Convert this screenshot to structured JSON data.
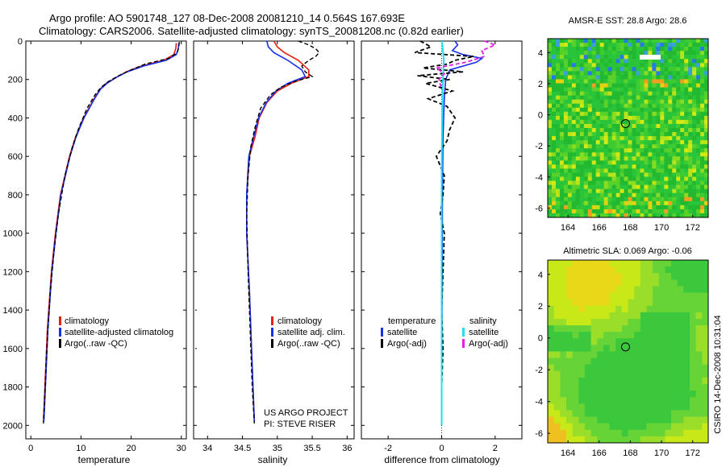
{
  "header": {
    "line1": "Argo profile: AO 5901748_127 08-Dec-2008 20081210_14 0.564S 167.693E",
    "line2": "Climatology: CARS2006. Satellite-adjusted climatology: synTS_20081208.nc (0.82d earlier)"
  },
  "credits": {
    "project": "US ARGO PROJECT",
    "pi": "PI: STEVE RISER"
  },
  "side_label": "CSIRO 14-Dec-2008 10:31:04",
  "colors": {
    "climatology": "#e82010",
    "satellite": "#1830e8",
    "argo": "#000000",
    "sat_salinity": "#20e0f0",
    "argo_salinity": "#e020e0",
    "map_green": "#22bb33",
    "map_yellow": "#c8e818",
    "map_orange": "#f0a020"
  },
  "chart_data": [
    {
      "type": "line",
      "name": "temperature-profile",
      "xlabel": "temperature",
      "ylabel": "",
      "xlim": [
        -1,
        31
      ],
      "ylim": [
        2070,
        0
      ],
      "y_reversed": true,
      "xticks": [
        0,
        10,
        20,
        30
      ],
      "yticks": [
        0,
        200,
        400,
        600,
        800,
        1000,
        1200,
        1400,
        1600,
        1800,
        2000
      ],
      "legend": [
        "climatology",
        "satellite-adjusted climatolog",
        "Argo(..raw -QC)"
      ],
      "series": [
        {
          "name": "climatology",
          "depth": [
            10,
            40,
            70,
            100,
            130,
            160,
            190,
            220,
            250,
            300,
            400,
            500,
            600,
            800,
            1000,
            1200,
            1500,
            1800,
            1980
          ],
          "values": [
            29.0,
            28.9,
            28.5,
            26.5,
            22.0,
            19.0,
            17.0,
            15.0,
            13.8,
            12.6,
            10.5,
            8.9,
            7.7,
            5.9,
            4.9,
            4.1,
            3.3,
            2.8,
            2.5
          ]
        },
        {
          "name": "satellite-adjusted climatolog",
          "depth": [
            10,
            40,
            70,
            100,
            130,
            160,
            190,
            220,
            250,
            300,
            400,
            500,
            600,
            800,
            1000,
            1200,
            1500,
            1800,
            1980
          ],
          "values": [
            29.5,
            29.4,
            29.0,
            27.0,
            22.5,
            19.2,
            17.0,
            15.2,
            13.9,
            12.7,
            10.6,
            9.0,
            7.8,
            6.0,
            5.0,
            4.2,
            3.4,
            2.9,
            2.6
          ]
        },
        {
          "name": "Argo(..raw -QC)",
          "depth": [
            5,
            30,
            60,
            90,
            120,
            150,
            180,
            210,
            240,
            280,
            350,
            450,
            550,
            700,
            900,
            1100,
            1300,
            1500,
            1700,
            1900,
            1990
          ],
          "values": [
            29.6,
            29.5,
            29.2,
            27.5,
            22.8,
            20.0,
            17.5,
            15.5,
            14.0,
            12.8,
            11.2,
            9.6,
            8.3,
            6.8,
            5.5,
            4.6,
            3.9,
            3.4,
            3.0,
            2.7,
            2.5
          ]
        }
      ]
    },
    {
      "type": "line",
      "name": "salinity-profile",
      "xlabel": "salinity",
      "ylabel": "",
      "xlim": [
        33.8,
        36.1
      ],
      "ylim": [
        2070,
        0
      ],
      "y_reversed": true,
      "xticks": [
        34,
        34.5,
        35,
        35.5,
        36
      ],
      "legend": [
        "climatology",
        "satellite adj. clim.",
        "Argo(..raw -QC)"
      ],
      "series": [
        {
          "name": "climatology",
          "depth": [
            0,
            30,
            60,
            100,
            150,
            185,
            220,
            260,
            320,
            400,
            500,
            600,
            800,
            1000,
            1300,
            1600,
            1980
          ],
          "values": [
            34.95,
            35.0,
            35.1,
            35.3,
            35.45,
            35.45,
            35.2,
            35.0,
            34.85,
            34.74,
            34.68,
            34.6,
            34.56,
            34.56,
            34.6,
            34.63,
            34.67
          ]
        },
        {
          "name": "satellite adj. clim.",
          "depth": [
            0,
            30,
            60,
            100,
            150,
            185,
            220,
            260,
            320,
            400,
            500,
            600,
            800,
            1000,
            1300,
            1600,
            1980
          ],
          "values": [
            34.85,
            34.87,
            34.95,
            35.15,
            35.35,
            35.4,
            35.15,
            34.98,
            34.84,
            34.73,
            34.66,
            34.59,
            34.56,
            34.56,
            34.6,
            34.63,
            34.67
          ]
        },
        {
          "name": "Argo(..raw -QC)",
          "depth": [
            0,
            20,
            40,
            60,
            80,
            100,
            130,
            160,
            185,
            210,
            240,
            280,
            350,
            450,
            550,
            700,
            900,
            1200,
            1500,
            1800,
            1990
          ],
          "values": [
            35.3,
            35.45,
            35.55,
            35.6,
            35.55,
            35.45,
            35.35,
            35.4,
            35.5,
            35.25,
            35.05,
            34.9,
            34.76,
            34.68,
            34.62,
            34.58,
            34.56,
            34.58,
            34.61,
            34.64,
            34.67
          ]
        }
      ]
    },
    {
      "type": "line",
      "name": "difference-profile",
      "xlabel": "difference from climatology",
      "ylabel": "",
      "xlim": [
        -3,
        3
      ],
      "ylim": [
        2070,
        0
      ],
      "y_reversed": true,
      "xticks": [
        -2,
        0,
        2
      ],
      "legend_left_title": "temperature",
      "legend_right_title": "salinity",
      "legend": [
        "satellite",
        "Argo(-adj)",
        "satellite",
        "Argo(-adj)"
      ],
      "series": [
        {
          "name": "temperature satellite",
          "depth": [
            0,
            20,
            50,
            70,
            90,
            110,
            150,
            200,
            300,
            500,
            800,
            1200,
            1600,
            2000
          ],
          "values": [
            0.5,
            0.6,
            0.4,
            0.8,
            1.5,
            1.3,
            0.3,
            0.15,
            0.1,
            0.05,
            0.03,
            0.02,
            0.01,
            0.0
          ]
        },
        {
          "name": "temperature Argo(-adj)",
          "depth": [
            0,
            30,
            60,
            80,
            100,
            120,
            140,
            160,
            180,
            200,
            220,
            260,
            300,
            340,
            400,
            460,
            520,
            600,
            700,
            800,
            900,
            1000,
            1200,
            1400,
            1600,
            1800,
            2000
          ],
          "values": [
            -0.8,
            -0.4,
            -1.0,
            1.2,
            0.5,
            0.2,
            -0.7,
            0.8,
            -0.9,
            0.3,
            -0.6,
            0.4,
            -0.5,
            0.2,
            0.5,
            0.3,
            0.2,
            -0.2,
            0.1,
            0.05,
            -0.05,
            0.1,
            0.05,
            0.0,
            0.05,
            0.0,
            0.0
          ]
        },
        {
          "name": "salinity satellite",
          "depth": [
            0,
            50,
            100,
            200,
            400,
            700,
            1000,
            1500,
            2000
          ],
          "values": [
            0.0,
            0.05,
            0.08,
            0.05,
            0.02,
            0.0,
            0.0,
            0.0,
            0.0
          ]
        },
        {
          "name": "salinity Argo(-adj)",
          "depth": [
            0,
            20,
            50,
            80,
            110,
            140,
            170,
            200,
            250
          ],
          "values": [
            1.6,
            2.0,
            1.5,
            1.6,
            0.9,
            -0.2,
            0.1,
            -0.1,
            0.0
          ]
        }
      ]
    },
    {
      "type": "heatmap",
      "name": "sst-map",
      "title": "AMSR-E SST: 28.8 Argo: 28.6",
      "xlim": [
        162.7,
        173.0
      ],
      "ylim": [
        -6.6,
        4.9
      ],
      "xticks": [
        164,
        166,
        168,
        170,
        172
      ],
      "yticks": [
        -6,
        -4,
        -2,
        0,
        2,
        4
      ],
      "marker": {
        "lon": 167.693,
        "lat": -0.564
      }
    },
    {
      "type": "heatmap",
      "name": "sla-map",
      "title": "Altimetric SLA: 0.069 Argo: -0.06",
      "xlim": [
        162.7,
        173.0
      ],
      "ylim": [
        -6.6,
        4.9
      ],
      "xticks": [
        164,
        166,
        168,
        170,
        172
      ],
      "yticks": [
        -6,
        -4,
        -2,
        0,
        2,
        4
      ],
      "marker": {
        "lon": 167.693,
        "lat": -0.564
      }
    }
  ]
}
